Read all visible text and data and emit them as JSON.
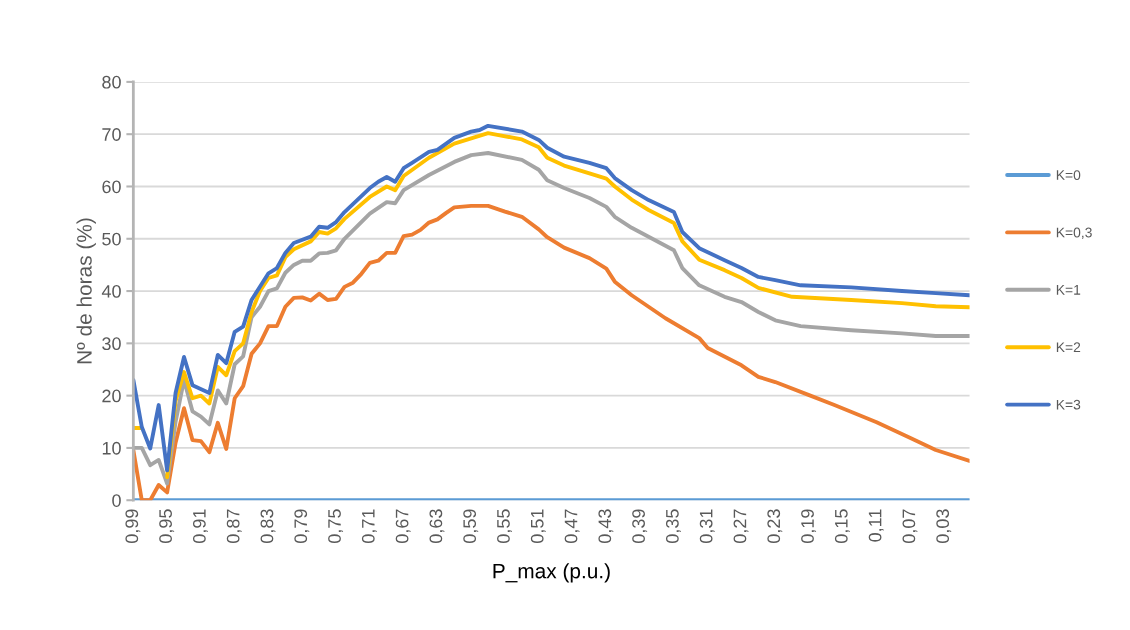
{
  "chart_data": {
    "type": "line",
    "xlabel": "P_max (p.u.)",
    "ylabel": "Nº de horas (%)",
    "xlim": [
      0.99,
      0.0
    ],
    "xticks": [
      {
        "value": 0.99,
        "label": "0,99"
      },
      {
        "value": 0.95,
        "label": "0,95"
      },
      {
        "value": 0.91,
        "label": "0,91"
      },
      {
        "value": 0.87,
        "label": "0,87"
      },
      {
        "value": 0.83,
        "label": "0,83"
      },
      {
        "value": 0.79,
        "label": "0,79"
      },
      {
        "value": 0.75,
        "label": "0,75"
      },
      {
        "value": 0.71,
        "label": "0,71"
      },
      {
        "value": 0.67,
        "label": "0,67"
      },
      {
        "value": 0.63,
        "label": "0,63"
      },
      {
        "value": 0.59,
        "label": "0,59"
      },
      {
        "value": 0.55,
        "label": "0,55"
      },
      {
        "value": 0.51,
        "label": "0,51"
      },
      {
        "value": 0.47,
        "label": "0,47"
      },
      {
        "value": 0.43,
        "label": "0,43"
      },
      {
        "value": 0.39,
        "label": "0,39"
      },
      {
        "value": 0.35,
        "label": "0,35"
      },
      {
        "value": 0.31,
        "label": "0,31"
      },
      {
        "value": 0.27,
        "label": "0,27"
      },
      {
        "value": 0.23,
        "label": "0,23"
      },
      {
        "value": 0.19,
        "label": "0,19"
      },
      {
        "value": 0.15,
        "label": "0,15"
      },
      {
        "value": 0.11,
        "label": "0,11"
      },
      {
        "value": 0.07,
        "label": "0,07"
      },
      {
        "value": 0.03,
        "label": "0,03"
      }
    ],
    "ylim": [
      0,
      80
    ],
    "yticks": [
      0,
      10,
      20,
      30,
      40,
      50,
      60,
      70,
      80
    ],
    "grid": "y",
    "legend": "right",
    "marker": "none",
    "line_style": "solid",
    "series": [
      {
        "name": "K=0",
        "color": "#5b9bd5",
        "x": [
          0.99,
          0.0
        ],
        "values": [
          0,
          0
        ]
      },
      {
        "name": "K=0,3",
        "color": "#ed7d31",
        "x": [
          0.99,
          0.98,
          0.97,
          0.96,
          0.95,
          0.94,
          0.93,
          0.92,
          0.91,
          0.9,
          0.89,
          0.88,
          0.87,
          0.86,
          0.85,
          0.84,
          0.83,
          0.82,
          0.81,
          0.8,
          0.79,
          0.78,
          0.77,
          0.76,
          0.75,
          0.74,
          0.73,
          0.72,
          0.71,
          0.7,
          0.69,
          0.68,
          0.67,
          0.66,
          0.65,
          0.64,
          0.63,
          0.62,
          0.61,
          0.59,
          0.57,
          0.55,
          0.53,
          0.51,
          0.5,
          0.48,
          0.45,
          0.43,
          0.42,
          0.4,
          0.38,
          0.36,
          0.32,
          0.31,
          0.27,
          0.25,
          0.23,
          0.19,
          0.16,
          0.11,
          0.07,
          0.04,
          0.0
        ],
        "values": [
          9.6,
          0,
          0,
          2.9,
          1.5,
          11,
          17.6,
          11.5,
          11.3,
          9.2,
          14.8,
          9.8,
          19.5,
          21.8,
          28,
          30,
          33.3,
          33.3,
          37,
          38.7,
          38.8,
          38.2,
          39.5,
          38.3,
          38.5,
          40.8,
          41.6,
          43.3,
          45.4,
          45.8,
          47.3,
          47.3,
          50.5,
          50.8,
          51.7,
          53.1,
          53.7,
          54.9,
          56,
          56.3,
          56.3,
          55.2,
          54.2,
          51.8,
          50.3,
          48.3,
          46.3,
          44.3,
          41.8,
          39.2,
          37,
          34.8,
          31,
          29.1,
          25.8,
          23.6,
          22.6,
          20.1,
          18.2,
          14.9,
          11.9,
          9.6,
          7.5
        ]
      },
      {
        "name": "K=1",
        "color": "#a5a5a5",
        "x": [
          0.99,
          0.98,
          0.97,
          0.96,
          0.95,
          0.94,
          0.93,
          0.92,
          0.91,
          0.9,
          0.89,
          0.88,
          0.87,
          0.86,
          0.85,
          0.84,
          0.83,
          0.82,
          0.81,
          0.8,
          0.79,
          0.78,
          0.77,
          0.76,
          0.75,
          0.74,
          0.71,
          0.69,
          0.68,
          0.67,
          0.64,
          0.61,
          0.59,
          0.57,
          0.53,
          0.51,
          0.5,
          0.48,
          0.45,
          0.43,
          0.42,
          0.4,
          0.38,
          0.35,
          0.34,
          0.32,
          0.29,
          0.27,
          0.25,
          0.23,
          0.2,
          0.14,
          0.08,
          0.04,
          0.0
        ],
        "values": [
          10,
          10,
          6.7,
          7.7,
          3.2,
          15,
          23,
          17,
          16,
          14.5,
          21,
          18.5,
          26,
          27.5,
          35,
          37,
          40,
          40.5,
          43.5,
          45,
          45.8,
          45.8,
          47.2,
          47.3,
          47.8,
          50,
          54.8,
          57,
          56.8,
          59.3,
          62.2,
          64.7,
          66,
          66.4,
          65.1,
          63.2,
          61.2,
          59.7,
          57.8,
          56.1,
          54.2,
          52.1,
          50.4,
          47.8,
          44.4,
          41.1,
          38.9,
          37.9,
          36,
          34.4,
          33.3,
          32.5,
          31.9,
          31.4,
          31.4
        ]
      },
      {
        "name": "K=2",
        "color": "#ffc000",
        "x": [
          0.99,
          0.98,
          0.97,
          0.96,
          0.95,
          0.94,
          0.93,
          0.92,
          0.91,
          0.9,
          0.89,
          0.88,
          0.87,
          0.86,
          0.85,
          0.84,
          0.83,
          0.82,
          0.81,
          0.8,
          0.78,
          0.77,
          0.76,
          0.75,
          0.74,
          0.71,
          0.69,
          0.68,
          0.67,
          0.64,
          0.61,
          0.57,
          0.53,
          0.51,
          0.5,
          0.48,
          0.45,
          0.43,
          0.42,
          0.4,
          0.38,
          0.35,
          0.34,
          0.32,
          0.29,
          0.27,
          0.25,
          0.21,
          0.14,
          0.08,
          0.04,
          0.0
        ],
        "values": [
          13.8,
          13.8,
          null,
          null,
          4.4,
          19,
          24.5,
          19.5,
          20,
          18.5,
          25.5,
          23.9,
          28.5,
          30,
          36,
          40,
          42.5,
          43,
          46.5,
          48,
          49.5,
          51.3,
          51,
          52,
          53.8,
          58,
          60,
          59.3,
          62,
          65.5,
          68.2,
          70.2,
          69,
          67.5,
          65.5,
          64,
          62.5,
          61.5,
          60,
          57.5,
          55.5,
          53,
          49.5,
          46,
          44,
          42.5,
          40.6,
          38.9,
          38.3,
          37.7,
          37.1,
          36.9
        ]
      },
      {
        "name": "K=3",
        "color": "#4472c4",
        "x": [
          0.99,
          0.98,
          0.97,
          0.96,
          0.95,
          0.94,
          0.93,
          0.92,
          0.9,
          0.89,
          0.88,
          0.87,
          0.86,
          0.85,
          0.83,
          0.82,
          0.81,
          0.8,
          0.78,
          0.77,
          0.76,
          0.75,
          0.74,
          0.71,
          0.7,
          0.69,
          0.68,
          0.67,
          0.66,
          0.64,
          0.63,
          0.61,
          0.59,
          0.58,
          0.57,
          0.53,
          0.51,
          0.5,
          0.48,
          0.45,
          0.43,
          0.42,
          0.4,
          0.38,
          0.35,
          0.34,
          0.32,
          0.29,
          0.27,
          0.25,
          0.23,
          0.2,
          0.14,
          0.08,
          0.04,
          0.0
        ],
        "values": [
          23,
          14,
          9.9,
          18.2,
          5.7,
          20.5,
          27.4,
          22,
          20.5,
          27.8,
          26.2,
          32.2,
          33.2,
          38.3,
          43.4,
          44.4,
          47.3,
          49.2,
          50.4,
          52.3,
          52.1,
          53.2,
          55.1,
          59.7,
          60.9,
          61.8,
          60.9,
          63.5,
          64.5,
          66.6,
          67,
          69.3,
          70.5,
          70.8,
          71.6,
          70.5,
          68.9,
          67.4,
          65.7,
          64.5,
          63.5,
          61.6,
          59.3,
          57.4,
          55.1,
          51.3,
          48.2,
          45.9,
          44.4,
          42.7,
          42.1,
          41.1,
          40.7,
          40,
          39.6,
          39.2
        ]
      }
    ]
  }
}
